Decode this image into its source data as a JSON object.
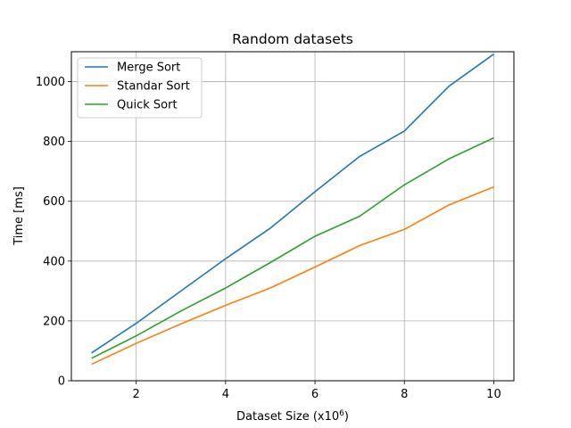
{
  "chart_data": {
    "type": "line",
    "title": "Random datasets",
    "xlabel": "Dataset Size (x10",
    "xlabel_sup": "6",
    "xlabel_end": ")",
    "ylabel": "Time [ms]",
    "x": [
      1,
      2,
      3,
      4,
      5,
      6,
      7,
      8,
      9,
      10
    ],
    "xlim": [
      0.55,
      10.45
    ],
    "ylim": [
      0,
      1100
    ],
    "xticks": [
      2,
      4,
      6,
      8,
      10
    ],
    "yticks": [
      0,
      200,
      400,
      600,
      800,
      1000
    ],
    "grid": true,
    "legend_position": "top-left",
    "series": [
      {
        "name": "Merge Sort",
        "color": "#1f77b4",
        "values": [
          93,
          192,
          300,
          408,
          510,
          632,
          750,
          835,
          985,
          1092
        ]
      },
      {
        "name": "Standar Sort",
        "color": "#ff7f0e",
        "values": [
          55,
          125,
          190,
          252,
          310,
          380,
          452,
          506,
          588,
          648
        ]
      },
      {
        "name": "Quick Sort",
        "color": "#2ca02c",
        "values": [
          75,
          150,
          233,
          310,
          395,
          483,
          550,
          655,
          742,
          812
        ]
      }
    ]
  }
}
